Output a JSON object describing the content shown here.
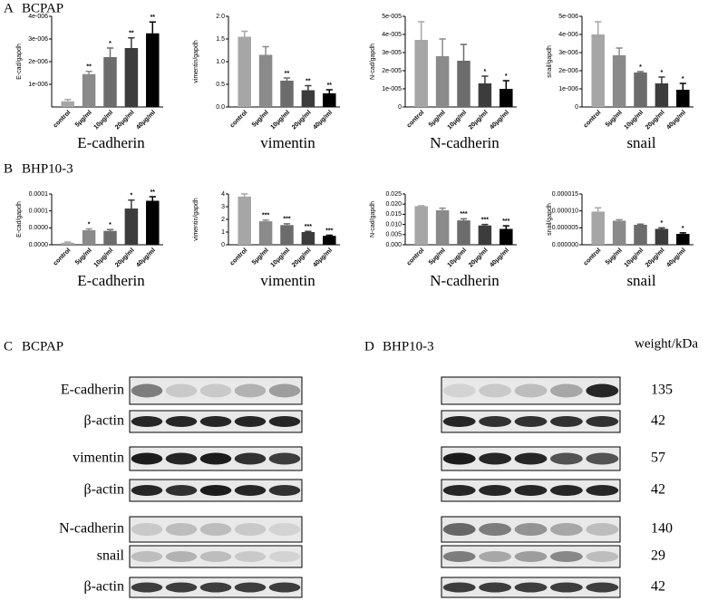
{
  "panels": [
    {
      "letter": "A",
      "title": "BCPAP"
    },
    {
      "letter": "B",
      "title": "BHP10-3"
    }
  ],
  "chart_data": [
    {
      "type": "bar",
      "xlabel": "E-cadherin",
      "ylabel": "E-cad/gapdh",
      "categories": [
        "control",
        "5μg/ml",
        "10μg/ml",
        "20μg/ml",
        "40μg/ml"
      ],
      "values": [
        2.5e-07,
        1.45e-06,
        2.2e-06,
        2.6e-06,
        3.25e-06
      ],
      "errors": [
        8e-08,
        1.2e-07,
        4e-07,
        4.5e-07,
        5e-07
      ],
      "annotations": [
        null,
        "**",
        "*",
        "**",
        "**"
      ],
      "colors": [
        "#a6a6a6",
        "#8a8a8a",
        "#6c6c6c",
        "#3c3c3c",
        "#000000"
      ],
      "ylim": [
        0,
        4e-06
      ],
      "yticks": [
        {
          "value": 1e-06,
          "label": "1e-006"
        },
        {
          "value": 2e-06,
          "label": "2e-006"
        },
        {
          "value": 3e-06,
          "label": "3e-006"
        },
        {
          "value": 4e-06,
          "label": "4e-006"
        }
      ]
    },
    {
      "type": "bar",
      "xlabel": "vimentin",
      "ylabel": "vimentin/gapdh",
      "categories": [
        "control",
        "5μg/ml",
        "10μg/ml",
        "20μg/ml",
        "40μg/ml"
      ],
      "values": [
        1.55,
        1.15,
        0.58,
        0.37,
        0.3
      ],
      "errors": [
        0.12,
        0.18,
        0.06,
        0.1,
        0.08
      ],
      "annotations": [
        null,
        null,
        "**",
        "**",
        "**"
      ],
      "colors": [
        "#a6a6a6",
        "#8a8a8a",
        "#6c6c6c",
        "#3c3c3c",
        "#000000"
      ],
      "ylim": [
        0,
        2
      ],
      "yticks": [
        {
          "value": 0,
          "label": "0.0"
        },
        {
          "value": 0.5,
          "label": "0.5"
        },
        {
          "value": 1,
          "label": "1.0"
        },
        {
          "value": 1.5,
          "label": "1.5"
        },
        {
          "value": 2,
          "label": "2.0"
        }
      ]
    },
    {
      "type": "bar",
      "xlabel": "N-cadherin",
      "ylabel": "N-cad/gapdh",
      "categories": [
        "control",
        "5μg/ml",
        "10μg/ml",
        "20μg/ml",
        "40μg/ml"
      ],
      "values": [
        3.7e-05,
        2.8e-05,
        2.55e-05,
        1.3e-05,
        1e-05
      ],
      "errors": [
        1e-05,
        9.5e-06,
        9e-06,
        4e-06,
        4.5e-06
      ],
      "annotations": [
        null,
        null,
        null,
        "*",
        "*"
      ],
      "colors": [
        "#a6a6a6",
        "#8a8a8a",
        "#6c6c6c",
        "#3c3c3c",
        "#000000"
      ],
      "ylim": [
        0,
        5e-05
      ],
      "yticks": [
        0,
        {
          "value": 1e-05,
          "label": "1e-005"
        },
        {
          "value": 2e-05,
          "label": "2e-005"
        },
        {
          "value": 3e-05,
          "label": "3e-005"
        },
        {
          "value": 4e-05,
          "label": "4e-005"
        },
        {
          "value": 5e-05,
          "label": "5e-005"
        }
      ]
    },
    {
      "type": "bar",
      "xlabel": "snail",
      "ylabel": "snail/gapdh",
      "categories": [
        "control",
        "5μg/ml",
        "10μg/ml",
        "20μg/ml",
        "40μg/ml"
      ],
      "values": [
        4e-06,
        2.85e-06,
        1.9e-06,
        1.3e-06,
        9.5e-07
      ],
      "errors": [
        7e-07,
        4e-07,
        5e-08,
        3.5e-07,
        3.5e-07
      ],
      "annotations": [
        null,
        null,
        "*",
        "*",
        "*"
      ],
      "colors": [
        "#a6a6a6",
        "#8a8a8a",
        "#6c6c6c",
        "#3c3c3c",
        "#000000"
      ],
      "ylim": [
        0,
        5e-06
      ],
      "yticks": [
        0,
        {
          "value": 1e-06,
          "label": "1e-006"
        },
        {
          "value": 2e-06,
          "label": "2e-006"
        },
        {
          "value": 3e-06,
          "label": "3e-006"
        },
        {
          "value": 4e-06,
          "label": "4e-006"
        },
        {
          "value": 5e-06,
          "label": "5e-006"
        }
      ]
    },
    {
      "type": "bar",
      "xlabel": "E-cadherin",
      "ylabel": "E-cad/gapdh",
      "categories": [
        "control",
        "5μg/ml",
        "10μg/ml",
        "20μg/ml",
        "40μg/ml"
      ],
      "values": [
        6e-06,
        4.3e-05,
        4.1e-05,
        0.000107,
        0.00013
      ],
      "errors": [
        2e-06,
        4e-06,
        4e-06,
        2.5e-05,
        1.2e-05
      ],
      "annotations": [
        null,
        "*",
        "*",
        "*",
        "**"
      ],
      "colors": [
        "#a6a6a6",
        "#8a8a8a",
        "#6c6c6c",
        "#3c3c3c",
        "#000000"
      ],
      "ylim": [
        0,
        0.00015
      ],
      "yticks": [
        {
          "value": 0,
          "label": "0.0000"
        },
        {
          "value": 5e-05,
          "label": "0.0000"
        },
        {
          "value": 0.0001,
          "label": "0.0001"
        },
        {
          "value": 0.00015,
          "label": "0.0001"
        }
      ]
    },
    {
      "type": "bar",
      "xlabel": "vimentin",
      "ylabel": "vimentin/gapdh",
      "categories": [
        "control",
        "5μg/ml",
        "10μg/ml",
        "20μg/ml",
        "40μg/ml"
      ],
      "values": [
        3.8,
        1.85,
        1.55,
        1.0,
        0.7
      ],
      "errors": [
        0.2,
        0.1,
        0.1,
        0.05,
        0.05
      ],
      "annotations": [
        null,
        "***",
        "***",
        "***",
        "***"
      ],
      "colors": [
        "#a6a6a6",
        "#8a8a8a",
        "#6c6c6c",
        "#3c3c3c",
        "#000000"
      ],
      "ylim": [
        0,
        4
      ],
      "yticks": [
        0,
        1,
        2,
        3,
        4
      ]
    },
    {
      "type": "bar",
      "xlabel": "N-cadherin",
      "ylabel": "N-cad/gapdh",
      "categories": [
        "control",
        "5μg/ml",
        "10μg/ml",
        "20μg/ml",
        "40μg/ml"
      ],
      "values": [
        0.019,
        0.017,
        0.012,
        0.0095,
        0.0078
      ],
      "errors": [
        0.0002,
        0.001,
        0.0008,
        0.0005,
        0.0015
      ],
      "annotations": [
        null,
        null,
        "***",
        "***",
        "***"
      ],
      "colors": [
        "#a6a6a6",
        "#8a8a8a",
        "#6c6c6c",
        "#3c3c3c",
        "#000000"
      ],
      "ylim": [
        0,
        0.025
      ],
      "yticks": [
        {
          "value": 0,
          "label": "0.000"
        },
        {
          "value": 0.005,
          "label": "0.005"
        },
        {
          "value": 0.01,
          "label": "0.010"
        },
        {
          "value": 0.015,
          "label": "0.015"
        },
        {
          "value": 0.02,
          "label": "0.020"
        },
        {
          "value": 0.025,
          "label": "0.025"
        }
      ]
    },
    {
      "type": "bar",
      "xlabel": "snail",
      "ylabel": "snail/gapdh",
      "categories": [
        "control",
        "5μg/ml",
        "10μg/ml",
        "20μg/ml",
        "40μg/ml"
      ],
      "values": [
        9.8e-06,
        7.1e-06,
        5.9e-06,
        4.7e-06,
        3.2e-06
      ],
      "errors": [
        1.1e-06,
        3e-07,
        2e-07,
        3e-07,
        3e-07
      ],
      "annotations": [
        null,
        null,
        null,
        "*",
        "*"
      ],
      "colors": [
        "#a6a6a6",
        "#8a8a8a",
        "#6c6c6c",
        "#3c3c3c",
        "#000000"
      ],
      "ylim": [
        0,
        1.5e-05
      ],
      "yticks": [
        {
          "value": 0,
          "label": "0.000000"
        },
        {
          "value": 5e-06,
          "label": "0.000005"
        },
        {
          "value": 1e-05,
          "label": "0.000010"
        },
        {
          "value": 1.5e-05,
          "label": "0.000015"
        }
      ]
    }
  ],
  "blots": {
    "left": {
      "letter": "C",
      "title": "BCPAP"
    },
    "right": {
      "letter": "D",
      "title": "BHP10-3"
    },
    "rows": [
      "E-cadherin",
      "β-actin",
      "vimentin",
      "β-actin",
      "N-cadherin",
      "snail",
      "β-actin"
    ],
    "weight_header": "weight/kDa",
    "weights": [
      135,
      42,
      57,
      42,
      140,
      29,
      42
    ]
  }
}
